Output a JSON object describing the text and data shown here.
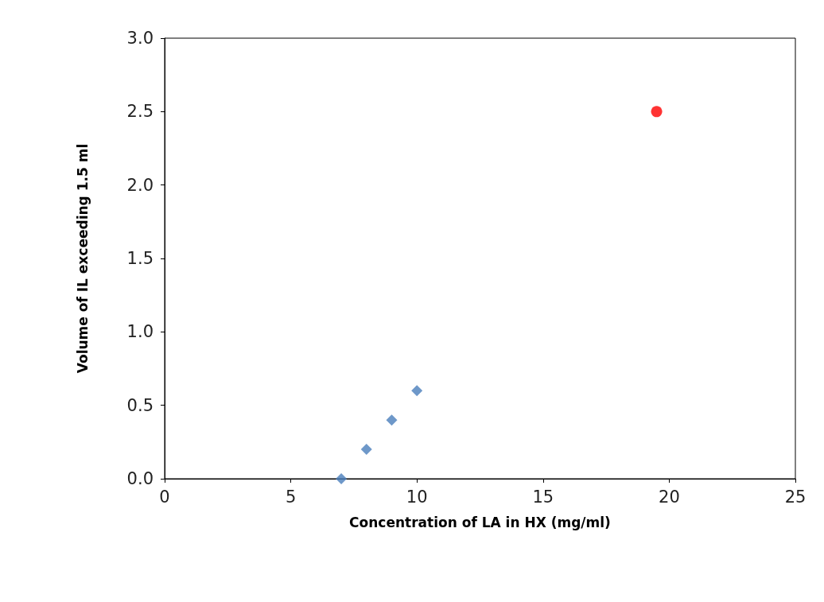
{
  "chart_data": {
    "type": "scatter",
    "xlabel": "Concentration of LA in HX (mg/ml)",
    "ylabel": "Volume of IL exceeding 1.5 ml",
    "xlim": [
      0,
      25
    ],
    "xticks": [
      0,
      5,
      10,
      15,
      20,
      25
    ],
    "ylim": [
      0,
      3
    ],
    "yticks": [
      {
        "value": 0,
        "label": "0.0"
      },
      {
        "value": 0.5,
        "label": "0.5"
      },
      {
        "value": 1,
        "label": "1.0"
      },
      {
        "value": 1.5,
        "label": "1.5"
      },
      {
        "value": 2,
        "label": "2.0"
      },
      {
        "value": 2.5,
        "label": "2.5"
      },
      {
        "value": 3,
        "label": "3.0"
      }
    ],
    "grid": false,
    "series": [
      {
        "color": "#4a7ebb",
        "marker": "diamond",
        "x": [
          7,
          8,
          9,
          10
        ],
        "values": [
          0,
          0.2,
          0.4,
          0.6
        ]
      },
      {
        "color": "#ff0000",
        "marker": "circle",
        "x": [
          19.5
        ],
        "values": [
          2.5
        ]
      }
    ]
  }
}
